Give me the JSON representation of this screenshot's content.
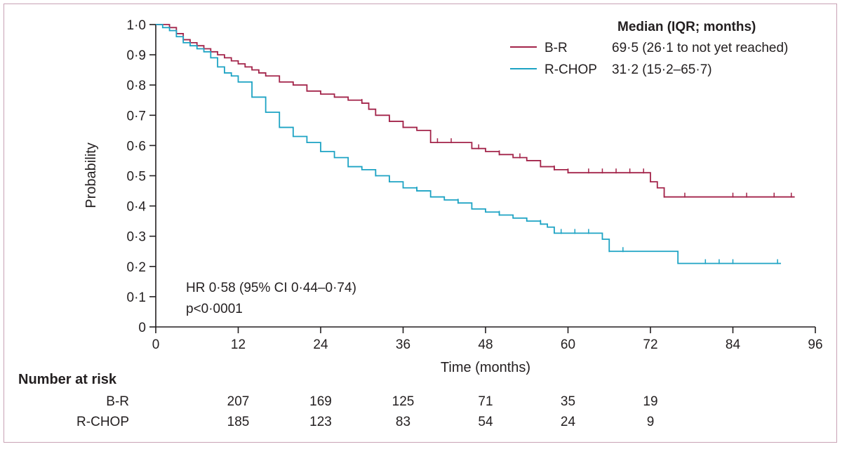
{
  "chart_data": {
    "type": "line",
    "subtype": "kaplan-meier",
    "xlabel": "Time (months)",
    "ylabel": "Probability",
    "xlim": [
      0,
      96
    ],
    "ylim": [
      0,
      1
    ],
    "x_ticks": [
      0,
      12,
      24,
      36,
      48,
      60,
      72,
      84,
      96
    ],
    "y_ticks": [
      {
        "value": 0,
        "label": "0"
      },
      {
        "value": 0.1,
        "label": "0·1"
      },
      {
        "value": 0.2,
        "label": "0·2"
      },
      {
        "value": 0.3,
        "label": "0·3"
      },
      {
        "value": 0.4,
        "label": "0·4"
      },
      {
        "value": 0.5,
        "label": "0·5"
      },
      {
        "value": 0.6,
        "label": "0·6"
      },
      {
        "value": 0.7,
        "label": "0·7"
      },
      {
        "value": 0.8,
        "label": "0·8"
      },
      {
        "value": 0.9,
        "label": "0·9"
      },
      {
        "value": 1.0,
        "label": "1·0"
      }
    ],
    "grid": false,
    "legend_position": "top-right",
    "legend_header": "Median (IQR; months)",
    "series": [
      {
        "name": "B-R",
        "color": "#a3244a",
        "median_label": "69·5 (26·1 to not yet reached)",
        "x": [
          0,
          1,
          2,
          3,
          4,
          5,
          6,
          7,
          8,
          9,
          10,
          11,
          12,
          13,
          14,
          15,
          16,
          18,
          20,
          22,
          24,
          26,
          28,
          30,
          31,
          32,
          34,
          36,
          38,
          40,
          44,
          46,
          48,
          50,
          52,
          54,
          56,
          58,
          60,
          62,
          64,
          66,
          68,
          70,
          72,
          73,
          74,
          80,
          86,
          90,
          93
        ],
        "y": [
          1.0,
          1.0,
          0.99,
          0.97,
          0.95,
          0.94,
          0.93,
          0.92,
          0.91,
          0.9,
          0.89,
          0.88,
          0.87,
          0.86,
          0.85,
          0.84,
          0.83,
          0.81,
          0.8,
          0.78,
          0.77,
          0.76,
          0.75,
          0.74,
          0.72,
          0.7,
          0.68,
          0.66,
          0.65,
          0.61,
          0.61,
          0.59,
          0.58,
          0.57,
          0.56,
          0.55,
          0.53,
          0.52,
          0.51,
          0.51,
          0.51,
          0.51,
          0.51,
          0.51,
          0.48,
          0.46,
          0.43,
          0.43,
          0.43,
          0.43,
          0.43
        ],
        "censor_x": [
          30,
          34,
          36,
          41,
          43,
          47,
          50,
          53,
          56,
          58,
          60,
          63,
          65,
          67,
          69,
          71,
          74,
          77,
          84,
          86,
          90,
          92.5
        ]
      },
      {
        "name": "R-CHOP",
        "color": "#1da3c4",
        "median_label": "31·2 (15·2–65·7)",
        "x": [
          0,
          1,
          2,
          3,
          4,
          5,
          6,
          7,
          8,
          9,
          10,
          11,
          12,
          14,
          16,
          18,
          20,
          22,
          24,
          26,
          28,
          30,
          32,
          34,
          36,
          38,
          40,
          42,
          44,
          46,
          48,
          50,
          52,
          54,
          56,
          57,
          58,
          60,
          62,
          64,
          65,
          66,
          70,
          75,
          76,
          80,
          86,
          91
        ],
        "y": [
          1.0,
          0.99,
          0.98,
          0.96,
          0.94,
          0.93,
          0.92,
          0.91,
          0.89,
          0.86,
          0.84,
          0.83,
          0.81,
          0.76,
          0.71,
          0.66,
          0.63,
          0.61,
          0.58,
          0.56,
          0.53,
          0.52,
          0.5,
          0.48,
          0.46,
          0.45,
          0.43,
          0.42,
          0.41,
          0.39,
          0.38,
          0.37,
          0.36,
          0.35,
          0.34,
          0.33,
          0.31,
          0.31,
          0.31,
          0.31,
          0.29,
          0.25,
          0.25,
          0.25,
          0.21,
          0.21,
          0.21,
          0.21
        ],
        "censor_x": [
          32,
          38,
          44,
          50,
          56,
          59,
          61,
          63,
          66,
          68,
          80,
          82,
          84,
          90.5
        ]
      }
    ],
    "annotations": [
      "HR 0·58 (95% CI 0·44–0·74)",
      "p<0·0001"
    ],
    "risk_table": {
      "title": "Number at risk",
      "times": [
        12,
        24,
        36,
        48,
        60,
        72
      ],
      "rows": [
        {
          "label": "B-R",
          "values": [
            "207",
            "169",
            "125",
            "71",
            "35",
            "19"
          ]
        },
        {
          "label": "R-CHOP",
          "values": [
            "185",
            "123",
            "83",
            "54",
            "24",
            "9"
          ]
        }
      ]
    }
  }
}
